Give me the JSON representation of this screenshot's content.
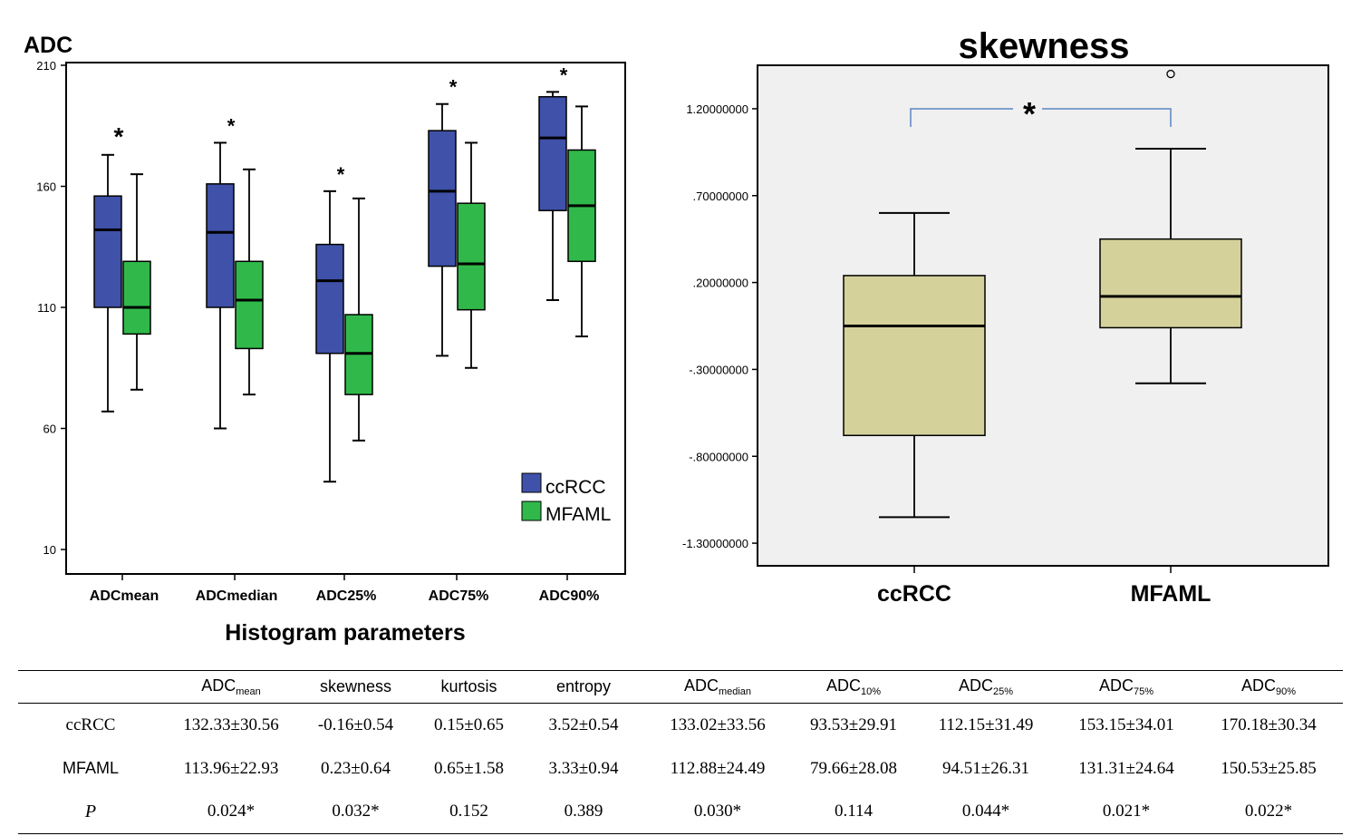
{
  "colors": {
    "ccRCC": "#3f51a9",
    "MFAML": "#30b94a",
    "skew_box": "#d5d19a",
    "skew_bg": "#f0f0f0",
    "bracket": "#5b86c4"
  },
  "chart_data": [
    {
      "type": "boxplot",
      "title": "ADC",
      "xlabel": "Histogram parameters",
      "ylabel": "ADC",
      "ylim": [
        10,
        210
      ],
      "yticks": [
        "210",
        "160",
        "110",
        "60",
        "10"
      ],
      "categories": [
        "ADCmean",
        "ADCmedian",
        "ADC25%",
        "ADC75%",
        "ADC90%"
      ],
      "significance": [
        "*",
        "*",
        "*",
        "*",
        "*"
      ],
      "legend": {
        "position": "bottom-right",
        "entries": [
          "ccRCC",
          "MFAML"
        ]
      },
      "series": [
        {
          "name": "ccRCC",
          "boxes": [
            {
              "min": 67,
              "q1": 110,
              "median": 142,
              "q3": 156,
              "max": 173
            },
            {
              "min": 60,
              "q1": 110,
              "median": 141,
              "q3": 161,
              "max": 178
            },
            {
              "min": 38,
              "q1": 91,
              "median": 121,
              "q3": 136,
              "max": 158
            },
            {
              "min": 90,
              "q1": 127,
              "median": 158,
              "q3": 183,
              "max": 194
            },
            {
              "min": 113,
              "q1": 150,
              "median": 180,
              "q3": 197,
              "max": 199
            }
          ]
        },
        {
          "name": "MFAML",
          "boxes": [
            {
              "min": 76,
              "q1": 99,
              "median": 110,
              "q3": 129,
              "max": 165
            },
            {
              "min": 74,
              "q1": 93,
              "median": 113,
              "q3": 129,
              "max": 167
            },
            {
              "min": 55,
              "q1": 74,
              "median": 91,
              "q3": 107,
              "max": 155
            },
            {
              "min": 85,
              "q1": 109,
              "median": 128,
              "q3": 153,
              "max": 178
            },
            {
              "min": 98,
              "q1": 129,
              "median": 152,
              "q3": 175,
              "max": 193
            }
          ]
        }
      ]
    },
    {
      "type": "boxplot",
      "title": "skewness",
      "xlabel": "",
      "ylabel": "",
      "ylim": [
        -1.43,
        1.45
      ],
      "yticks": [
        {
          "value": 1.2,
          "label": "1.20000000"
        },
        {
          "value": 0.7,
          "label": ".70000000"
        },
        {
          "value": 0.2,
          "label": ".20000000"
        },
        {
          "value": -0.3,
          "label": "-.30000000"
        },
        {
          "value": -0.8,
          "label": "-.80000000"
        },
        {
          "value": -1.3,
          "label": "-1.30000000"
        }
      ],
      "categories": [
        "ccRCC",
        "MFAML"
      ],
      "significance": "*",
      "boxes": [
        {
          "min": -1.15,
          "q1": -0.68,
          "median": -0.05,
          "q3": 0.24,
          "max": 0.6
        },
        {
          "min": -0.38,
          "q1": -0.06,
          "median": 0.12,
          "q3": 0.45,
          "max": 0.97
        }
      ],
      "outliers": [
        {
          "category": "MFAML",
          "value": 1.4
        }
      ]
    }
  ],
  "table": {
    "headers": [
      {
        "base": "",
        "sub": ""
      },
      {
        "base": "ADC",
        "sub": "mean"
      },
      {
        "base": "skewness",
        "sub": ""
      },
      {
        "base": "kurtosis",
        "sub": ""
      },
      {
        "base": "entropy",
        "sub": ""
      },
      {
        "base": "ADC",
        "sub": "median"
      },
      {
        "base": "ADC",
        "sub": "10%"
      },
      {
        "base": "ADC",
        "sub": "25%"
      },
      {
        "base": "ADC",
        "sub": "75%"
      },
      {
        "base": "ADC",
        "sub": "90%"
      }
    ],
    "rows": [
      [
        "ccRCC",
        "132.33±30.56",
        "-0.16±0.54",
        "0.15±0.65",
        "3.52±0.54",
        "133.02±33.56",
        "93.53±29.91",
        "112.15±31.49",
        "153.15±34.01",
        "170.18±30.34"
      ],
      [
        "MFAML",
        "113.96±22.93",
        "0.23±0.64",
        "0.65±1.58",
        "3.33±0.94",
        "112.88±24.49",
        "79.66±28.08",
        "94.51±26.31",
        "131.31±24.64",
        "150.53±25.85"
      ],
      [
        "P",
        "0.024*",
        "0.032*",
        "0.152",
        "0.389",
        "0.030*",
        "0.114",
        "0.044*",
        "0.021*",
        "0.022*"
      ]
    ]
  }
}
